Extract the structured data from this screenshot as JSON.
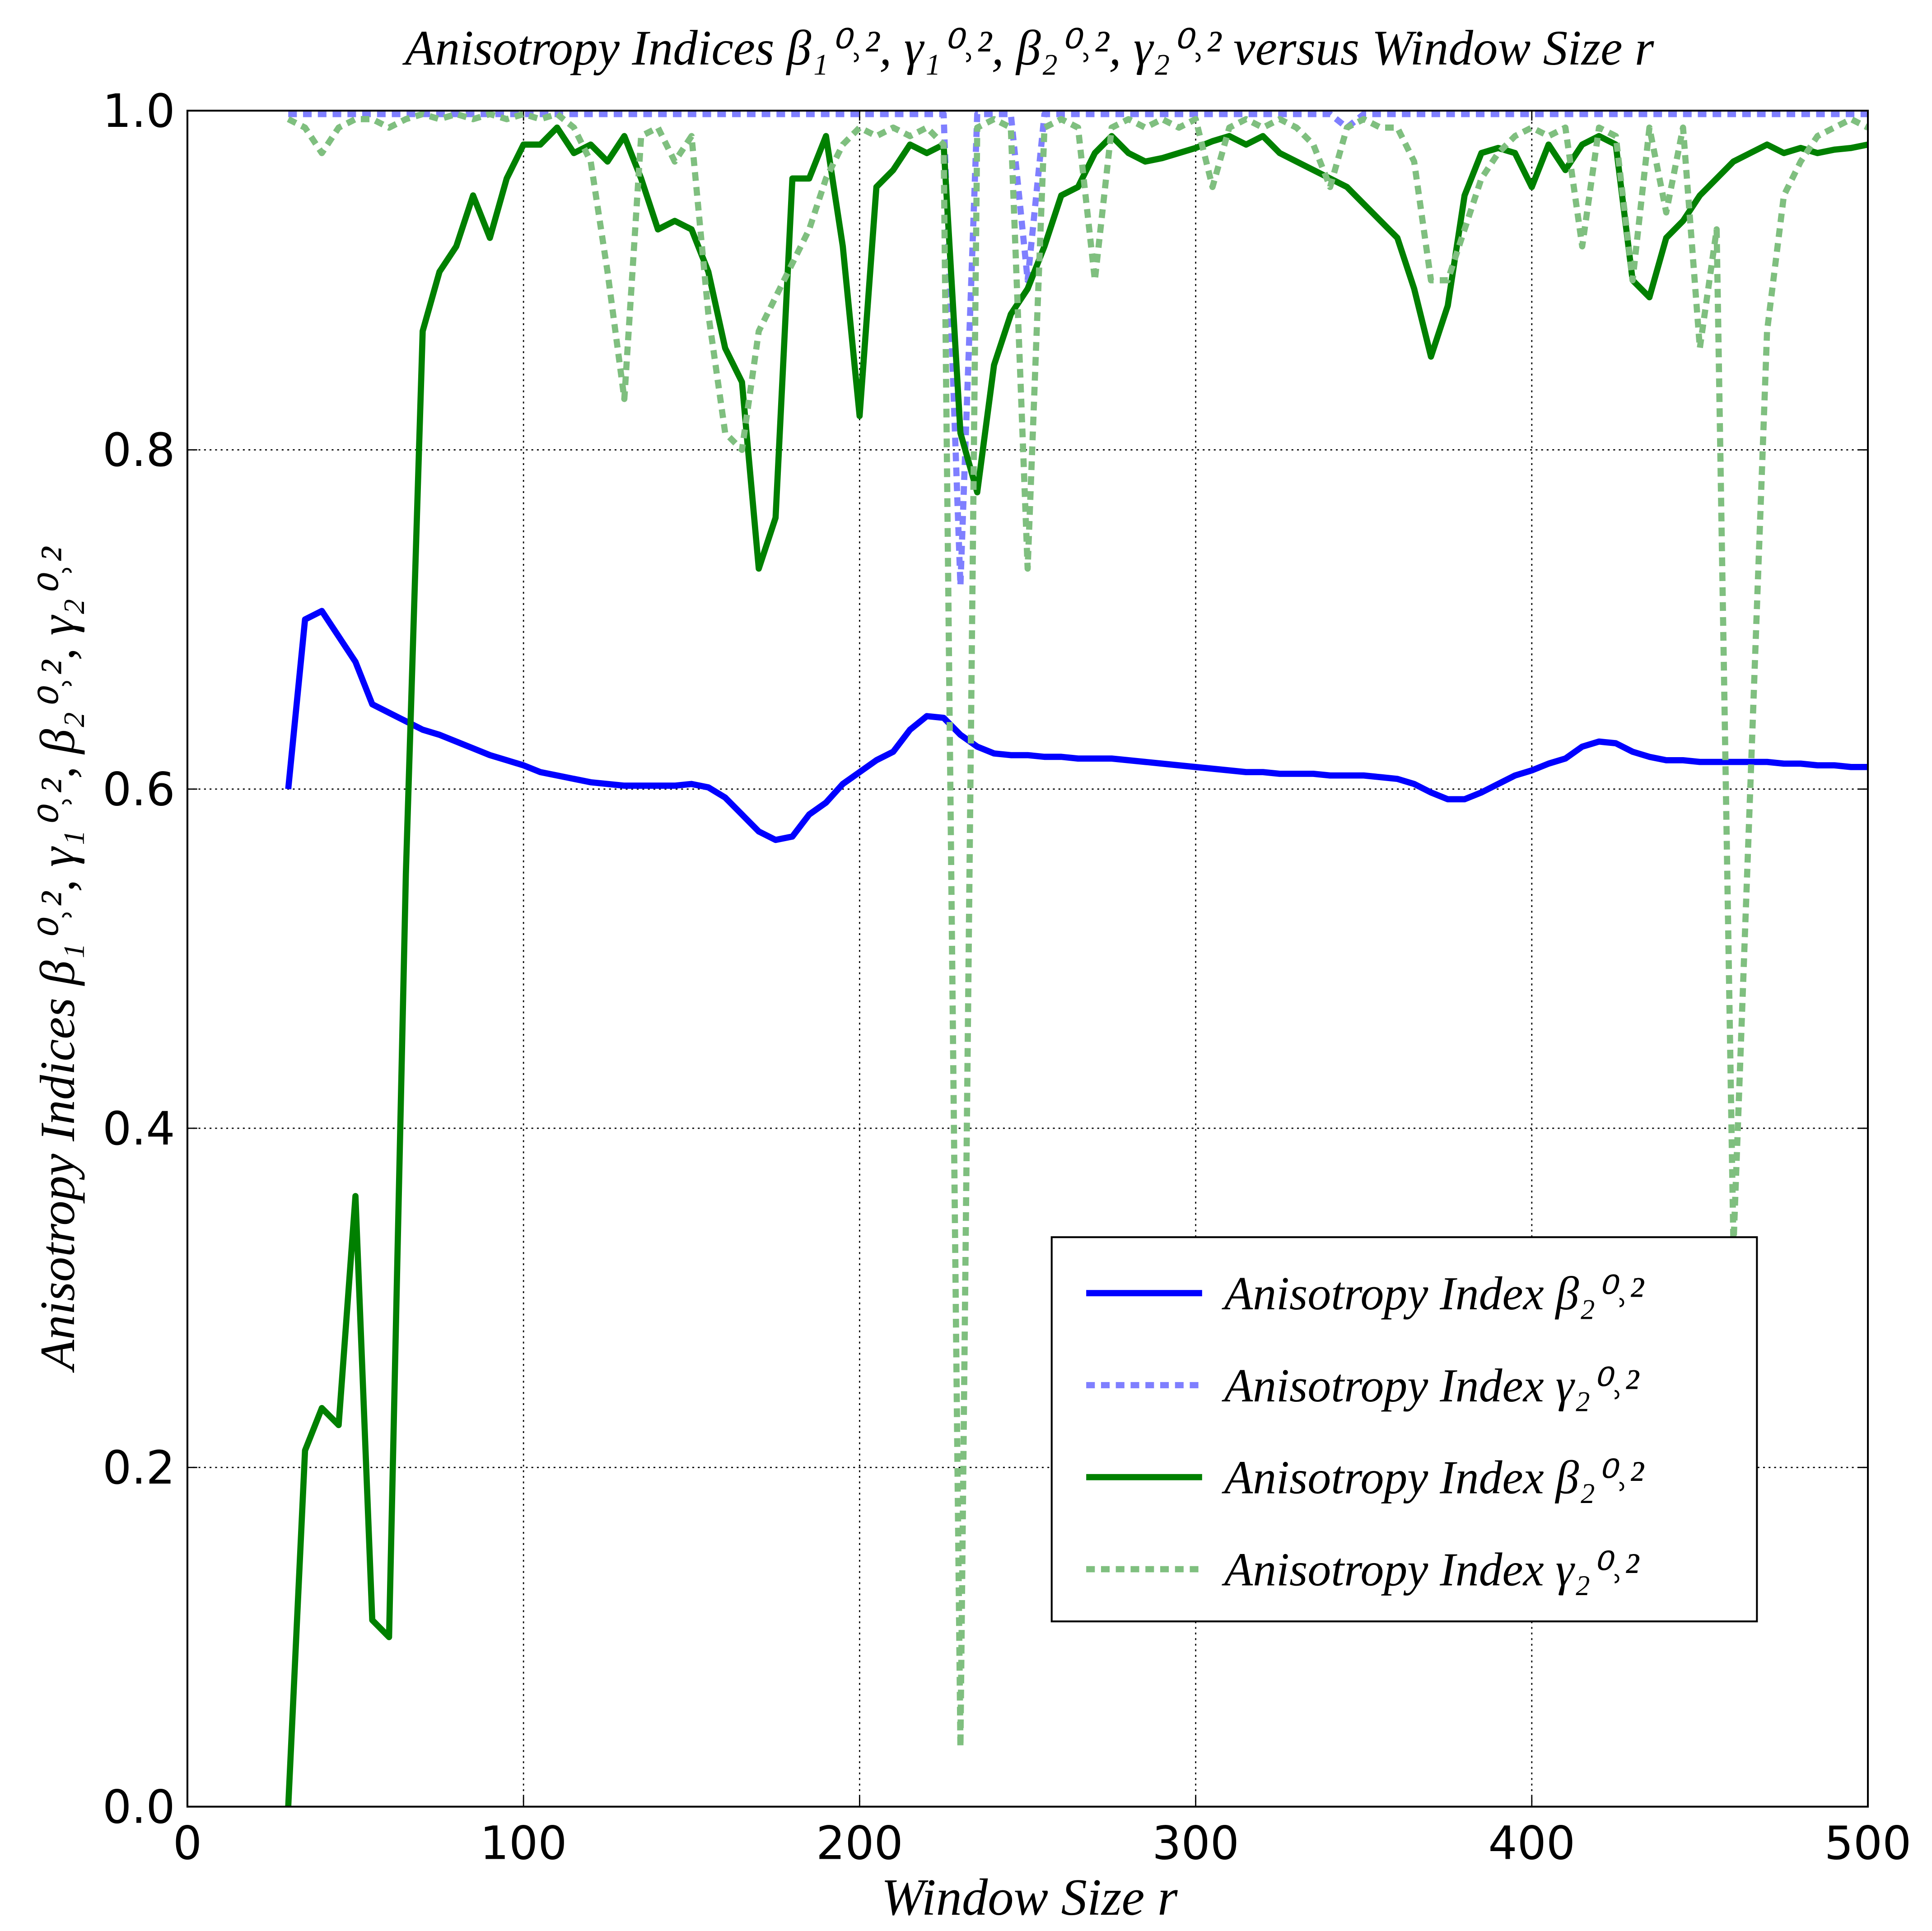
{
  "chart_data": {
    "type": "line",
    "title": "Anisotropy Indices β₁⁰˒², γ₁⁰˒², β₂⁰˒², γ₂⁰˒² versus Window Size r",
    "x_label": "Window Size r",
    "y_label": "Anisotropy Indices β₁⁰˒², γ₁⁰˒², β₂⁰˒², γ₂⁰˒²",
    "xlim": [
      0,
      500
    ],
    "ylim": [
      0,
      1
    ],
    "xticks": [
      0,
      100,
      200,
      300,
      400,
      500
    ],
    "yticks": [
      {
        "value": 0,
        "label": "0.0"
      },
      0.2,
      0.4,
      0.6,
      0.8,
      {
        "value": 1,
        "label": "1.0"
      }
    ],
    "grid": true,
    "legend": "lower right",
    "x": [
      30,
      35,
      40,
      45,
      50,
      55,
      60,
      65,
      70,
      75,
      80,
      85,
      90,
      95,
      100,
      105,
      110,
      115,
      120,
      125,
      130,
      135,
      140,
      145,
      150,
      155,
      160,
      165,
      170,
      175,
      180,
      185,
      190,
      195,
      200,
      205,
      210,
      215,
      220,
      225,
      230,
      235,
      240,
      245,
      250,
      255,
      260,
      265,
      270,
      275,
      280,
      285,
      290,
      295,
      300,
      305,
      310,
      315,
      320,
      325,
      330,
      335,
      340,
      345,
      350,
      355,
      360,
      365,
      370,
      375,
      380,
      385,
      390,
      395,
      400,
      405,
      410,
      415,
      420,
      425,
      430,
      435,
      440,
      445,
      450,
      455,
      460,
      465,
      470,
      475,
      480,
      485,
      490,
      495,
      500
    ],
    "series": [
      {
        "name": "Anisotropy Index β₂⁰˒²",
        "color": "#0000ff",
        "dash": false,
        "values": [
          0.6,
          0.7,
          0.705,
          0.69,
          0.675,
          0.65,
          0.645,
          0.64,
          0.635,
          0.632,
          0.628,
          0.624,
          0.62,
          0.617,
          0.614,
          0.61,
          0.608,
          0.606,
          0.604,
          0.603,
          0.602,
          0.602,
          0.602,
          0.602,
          0.603,
          0.601,
          0.595,
          0.585,
          0.575,
          0.57,
          0.572,
          0.585,
          0.592,
          0.603,
          0.61,
          0.617,
          0.622,
          0.635,
          0.643,
          0.642,
          0.632,
          0.625,
          0.621,
          0.62,
          0.62,
          0.619,
          0.619,
          0.618,
          0.618,
          0.618,
          0.617,
          0.616,
          0.615,
          0.614,
          0.613,
          0.612,
          0.611,
          0.61,
          0.61,
          0.609,
          0.609,
          0.609,
          0.608,
          0.608,
          0.608,
          0.607,
          0.606,
          0.603,
          0.598,
          0.594,
          0.594,
          0.598,
          0.603,
          0.608,
          0.611,
          0.615,
          0.618,
          0.625,
          0.628,
          0.627,
          0.622,
          0.619,
          0.617,
          0.617,
          0.616,
          0.616,
          0.616,
          0.616,
          0.616,
          0.615,
          0.615,
          0.614,
          0.614,
          0.613,
          0.613
        ]
      },
      {
        "name": "Anisotropy Index γ₂⁰˒²",
        "color": "#7f7fff",
        "dash": true,
        "values": [
          0.998,
          0.998,
          0.998,
          0.998,
          0.998,
          0.998,
          0.998,
          0.998,
          0.998,
          0.998,
          0.998,
          0.998,
          0.998,
          0.998,
          0.998,
          0.998,
          0.998,
          0.998,
          0.998,
          0.998,
          0.998,
          0.998,
          0.998,
          0.998,
          0.998,
          0.998,
          0.998,
          0.998,
          0.998,
          0.998,
          0.998,
          0.998,
          0.998,
          0.998,
          0.998,
          0.998,
          0.998,
          0.998,
          0.998,
          0.998,
          0.72,
          0.998,
          0.998,
          0.998,
          0.9,
          0.998,
          0.998,
          0.998,
          0.998,
          0.998,
          0.998,
          0.998,
          0.998,
          0.998,
          0.998,
          0.998,
          0.998,
          0.998,
          0.998,
          0.998,
          0.998,
          0.998,
          0.998,
          0.99,
          0.998,
          0.998,
          0.998,
          0.998,
          0.998,
          0.998,
          0.998,
          0.998,
          0.998,
          0.998,
          0.998,
          0.998,
          0.998,
          0.998,
          0.998,
          0.998,
          0.998,
          0.998,
          0.998,
          0.998,
          0.998,
          0.998,
          0.998,
          0.998,
          0.998,
          0.998,
          0.998,
          0.998,
          0.998,
          0.998,
          0.998
        ]
      },
      {
        "name": "Anisotropy Index β₂⁰˒²",
        "color": "#008000",
        "dash": false,
        "values": [
          0.0,
          0.21,
          0.235,
          0.225,
          0.36,
          0.11,
          0.1,
          0.55,
          0.87,
          0.905,
          0.92,
          0.95,
          0.925,
          0.96,
          0.98,
          0.98,
          0.99,
          0.975,
          0.98,
          0.97,
          0.985,
          0.96,
          0.93,
          0.935,
          0.93,
          0.905,
          0.86,
          0.84,
          0.73,
          0.76,
          0.96,
          0.96,
          0.985,
          0.92,
          0.82,
          0.955,
          0.965,
          0.98,
          0.975,
          0.98,
          0.81,
          0.775,
          0.85,
          0.88,
          0.895,
          0.92,
          0.95,
          0.955,
          0.975,
          0.985,
          0.975,
          0.97,
          0.972,
          0.975,
          0.978,
          0.982,
          0.985,
          0.98,
          0.985,
          0.975,
          0.97,
          0.965,
          0.96,
          0.955,
          0.945,
          0.935,
          0.925,
          0.895,
          0.855,
          0.885,
          0.95,
          0.975,
          0.978,
          0.975,
          0.955,
          0.98,
          0.965,
          0.98,
          0.985,
          0.98,
          0.9,
          0.89,
          0.925,
          0.935,
          0.95,
          0.96,
          0.97,
          0.975,
          0.98,
          0.975,
          0.978,
          0.975,
          0.977,
          0.978,
          0.98
        ]
      },
      {
        "name": "Anisotropy Index γ₂⁰˒²",
        "color": "#7fbf7f",
        "dash": true,
        "values": [
          0.995,
          0.99,
          0.975,
          0.99,
          0.995,
          0.995,
          0.99,
          0.995,
          0.998,
          0.995,
          0.998,
          0.995,
          0.998,
          0.995,
          0.998,
          0.995,
          0.998,
          0.99,
          0.97,
          0.905,
          0.83,
          0.985,
          0.99,
          0.97,
          0.985,
          0.88,
          0.81,
          0.8,
          0.87,
          0.89,
          0.91,
          0.93,
          0.96,
          0.98,
          0.99,
          0.985,
          0.99,
          0.985,
          0.99,
          0.98,
          0.035,
          0.99,
          0.995,
          0.99,
          0.73,
          0.99,
          0.995,
          0.99,
          0.9,
          0.99,
          0.995,
          0.99,
          0.995,
          0.99,
          0.995,
          0.955,
          0.99,
          0.995,
          0.99,
          0.995,
          0.99,
          0.98,
          0.955,
          0.99,
          0.995,
          0.99,
          0.99,
          0.97,
          0.9,
          0.9,
          0.93,
          0.96,
          0.975,
          0.985,
          0.99,
          0.985,
          0.99,
          0.92,
          0.99,
          0.985,
          0.9,
          0.99,
          0.94,
          0.99,
          0.86,
          0.93,
          0.33,
          0.6,
          0.87,
          0.95,
          0.97,
          0.985,
          0.99,
          0.995,
          0.99
        ]
      }
    ]
  }
}
